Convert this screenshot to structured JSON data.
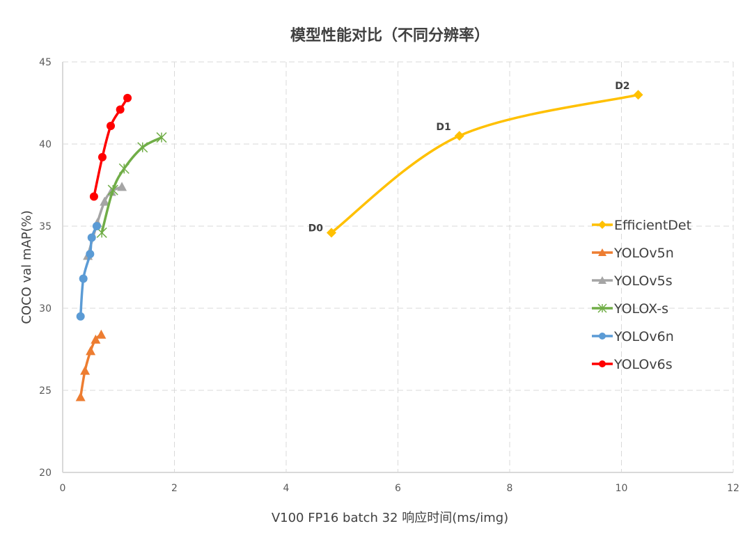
{
  "chart_data": {
    "type": "line",
    "title": "模型性能对比（不同分辨率）",
    "xlabel": "V100 FP16 batch 32 响应时间(ms/img)",
    "ylabel": "COCO val mAP(%)",
    "xlim": [
      0,
      12
    ],
    "ylim": [
      20,
      45
    ],
    "xticks": [
      "0",
      "2",
      "4",
      "6",
      "8",
      "10",
      "12"
    ],
    "yticks": [
      "20",
      "25",
      "30",
      "35",
      "40",
      "45"
    ],
    "grid": true,
    "legend": "right",
    "series": [
      {
        "name": "EfficientDet",
        "color": "#FFC000",
        "marker": "diamond",
        "x": [
          4.81,
          7.1,
          10.3
        ],
        "y": [
          34.6,
          40.5,
          43.0
        ],
        "labels": [
          "D0",
          "D1",
          "D2"
        ]
      },
      {
        "name": "YOLOv5n",
        "color": "#ED7D31",
        "marker": "triangle",
        "x": [
          0.32,
          0.4,
          0.5,
          0.59,
          0.69
        ],
        "y": [
          24.6,
          26.2,
          27.4,
          28.1,
          28.4
        ]
      },
      {
        "name": "YOLOv5s",
        "color": "#A5A5A5",
        "marker": "triangle",
        "x": [
          0.45,
          0.62,
          0.75,
          0.87,
          1.06
        ],
        "y": [
          33.2,
          35.2,
          36.5,
          37.1,
          37.4
        ]
      },
      {
        "name": "YOLOX-s",
        "color": "#70AD47",
        "marker": "star",
        "x": [
          0.7,
          0.9,
          1.1,
          1.43,
          1.77
        ],
        "y": [
          34.6,
          37.2,
          38.5,
          39.8,
          40.4
        ]
      },
      {
        "name": "YOLOv6n",
        "color": "#5B9BD5",
        "marker": "circle",
        "x": [
          0.32,
          0.37,
          0.49,
          0.52,
          0.61
        ],
        "y": [
          29.5,
          31.8,
          33.3,
          34.3,
          35.0
        ]
      },
      {
        "name": "YOLOv6s",
        "color": "#FF0000",
        "marker": "circle",
        "x": [
          0.56,
          0.71,
          0.86,
          1.03,
          1.16
        ],
        "y": [
          36.8,
          39.2,
          41.1,
          42.1,
          42.8
        ]
      }
    ]
  }
}
